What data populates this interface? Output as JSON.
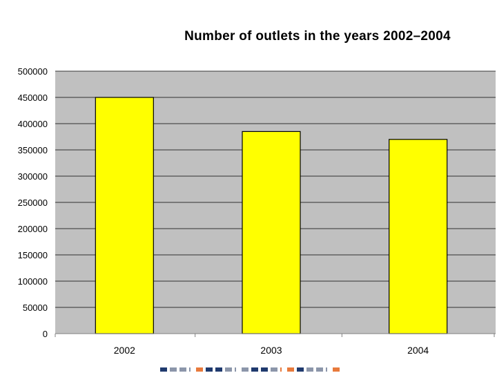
{
  "chart_data": {
    "type": "bar",
    "title": "Number of outlets in the years 2002–2004",
    "categories": [
      "2002",
      "2003",
      "2004"
    ],
    "values": [
      450000,
      385000,
      370000
    ],
    "xlabel": "",
    "ylabel": "",
    "ylim": [
      0,
      500000
    ],
    "yticks": [
      "0",
      "50000",
      "100000",
      "150000",
      "200000",
      "250000",
      "300000",
      "350000",
      "400000",
      "450000",
      "500000"
    ],
    "grid": true,
    "legend": "none",
    "colors": {
      "bar_fill": "#ffff00",
      "bar_stroke": "#000000",
      "plot_background": "#c0c0c0",
      "gridline": "#000000"
    }
  },
  "footer": {
    "colors": {
      "navy": "#1f3a6e",
      "grey": "#8c96aa",
      "orange": "#e87a3c"
    },
    "pattern": [
      "navy",
      "grey",
      "grey",
      "line-grey",
      "orange",
      "navy",
      "navy",
      "grey",
      "line-grey",
      "grey",
      "navy",
      "navy",
      "grey",
      "line-orange",
      "orange",
      "navy",
      "grey",
      "grey",
      "line-grey",
      "orange"
    ]
  }
}
